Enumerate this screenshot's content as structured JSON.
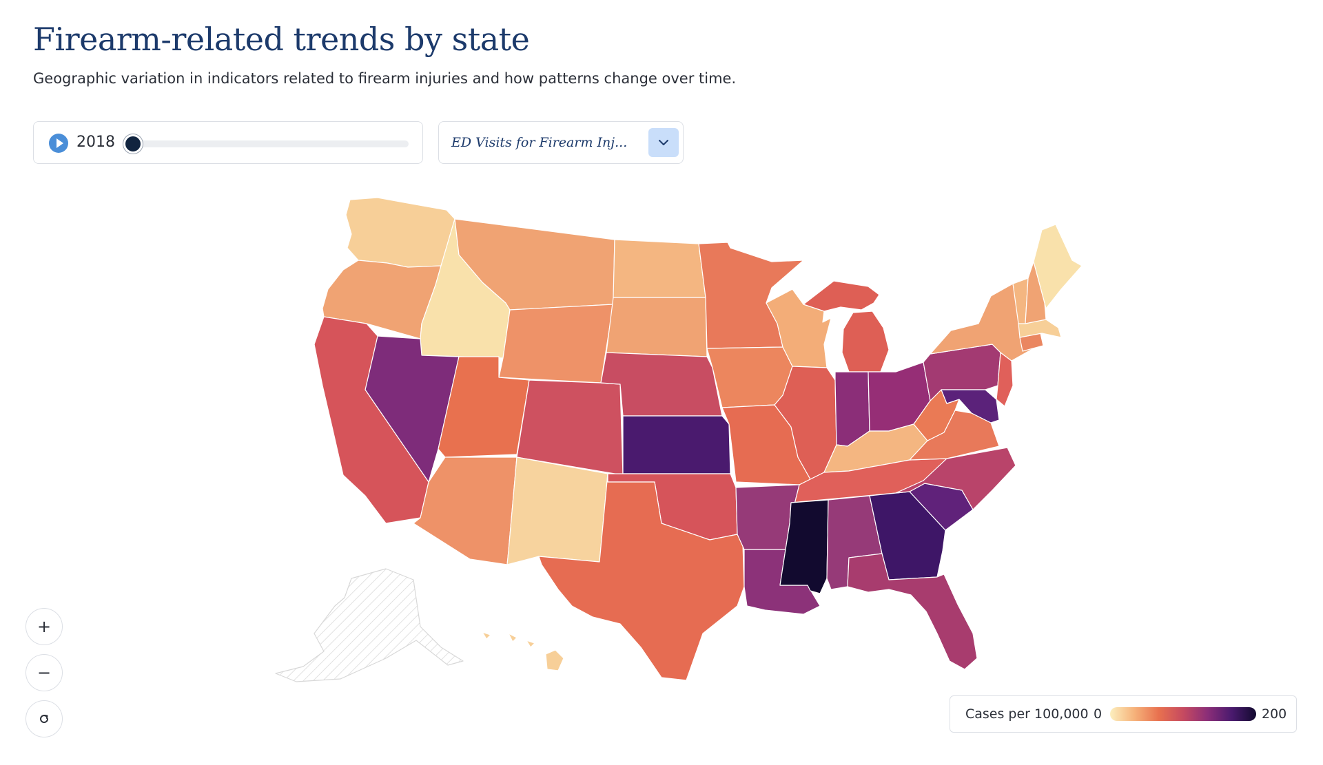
{
  "header": {
    "title": "Firearm-related trends by state",
    "subtitle": "Geographic variation in indicators related to firearm injuries and how patterns change over time."
  },
  "timeline": {
    "year": "2018",
    "play_icon": "play-icon",
    "position_fraction": 0.0
  },
  "metric_select": {
    "selected": "ED Visits for Firearm Inj...",
    "icon": "chevron-down-icon"
  },
  "zoom": {
    "in": "+",
    "out": "−",
    "reset_icon": "reset-icon"
  },
  "legend": {
    "title": "Cases per 100,000",
    "min": "0",
    "max": "200",
    "colors": [
      "#fcefbe",
      "#f6b27a",
      "#e8714f",
      "#c64a60",
      "#8b2e78",
      "#4a1a6e",
      "#120a2f"
    ]
  },
  "map": {
    "no_data_hatch_color": "#d8d8d8",
    "states": [
      {
        "id": "WA",
        "color": "#f7cf98"
      },
      {
        "id": "OR",
        "color": "#f0a373"
      },
      {
        "id": "ID",
        "color": "#f9e1ab"
      },
      {
        "id": "MT",
        "color": "#f0a373"
      },
      {
        "id": "WY",
        "color": "#ee9268"
      },
      {
        "id": "NV",
        "color": "#7e2c7a"
      },
      {
        "id": "CA",
        "color": "#d6545a"
      },
      {
        "id": "UT",
        "color": "#e8714f"
      },
      {
        "id": "CO",
        "color": "#ce5160"
      },
      {
        "id": "AZ",
        "color": "#ee9268"
      },
      {
        "id": "NM",
        "color": "#f7d39e"
      },
      {
        "id": "ND",
        "color": "#f4b681"
      },
      {
        "id": "SD",
        "color": "#f0a373"
      },
      {
        "id": "NE",
        "color": "#c84d62"
      },
      {
        "id": "KS",
        "color": "#4a1a6e"
      },
      {
        "id": "OK",
        "color": "#d6545a"
      },
      {
        "id": "TX",
        "color": "#e66c52"
      },
      {
        "id": "MN",
        "color": "#e8795a"
      },
      {
        "id": "IA",
        "color": "#ec865e"
      },
      {
        "id": "MO",
        "color": "#e66c52"
      },
      {
        "id": "AR",
        "color": "#963a78"
      },
      {
        "id": "LA",
        "color": "#8c3279"
      },
      {
        "id": "WI",
        "color": "#f3ad78"
      },
      {
        "id": "IL",
        "color": "#de5f55"
      },
      {
        "id": "MI",
        "color": "#de5f55"
      },
      {
        "id": "IN",
        "color": "#8b2e78"
      },
      {
        "id": "OH",
        "color": "#962e76"
      },
      {
        "id": "KY",
        "color": "#f4b681"
      },
      {
        "id": "TN",
        "color": "#e0605a"
      },
      {
        "id": "MS",
        "color": "#120a2f"
      },
      {
        "id": "AL",
        "color": "#963a78"
      },
      {
        "id": "GA",
        "color": "#3e1667"
      },
      {
        "id": "FL",
        "color": "#a83c6e"
      },
      {
        "id": "SC",
        "color": "#60227a"
      },
      {
        "id": "NC",
        "color": "#b9446a"
      },
      {
        "id": "VA",
        "color": "#e8795a"
      },
      {
        "id": "WV",
        "color": "#ea7a55"
      },
      {
        "id": "PA",
        "color": "#a33a72"
      },
      {
        "id": "MD",
        "color": "#5b227a"
      },
      {
        "id": "NJ",
        "color": "#e0605a"
      },
      {
        "id": "NY",
        "color": "#f0a373"
      },
      {
        "id": "CT",
        "color": "#ea8660"
      },
      {
        "id": "MA",
        "color": "#f7cf98"
      },
      {
        "id": "VT",
        "color": "#f4b681"
      },
      {
        "id": "NH",
        "color": "#f0a373"
      },
      {
        "id": "ME",
        "color": "#f9e1ab"
      },
      {
        "id": "HI",
        "color": "#f7cf98"
      },
      {
        "id": "AK",
        "color": "#ffffff"
      }
    ]
  }
}
